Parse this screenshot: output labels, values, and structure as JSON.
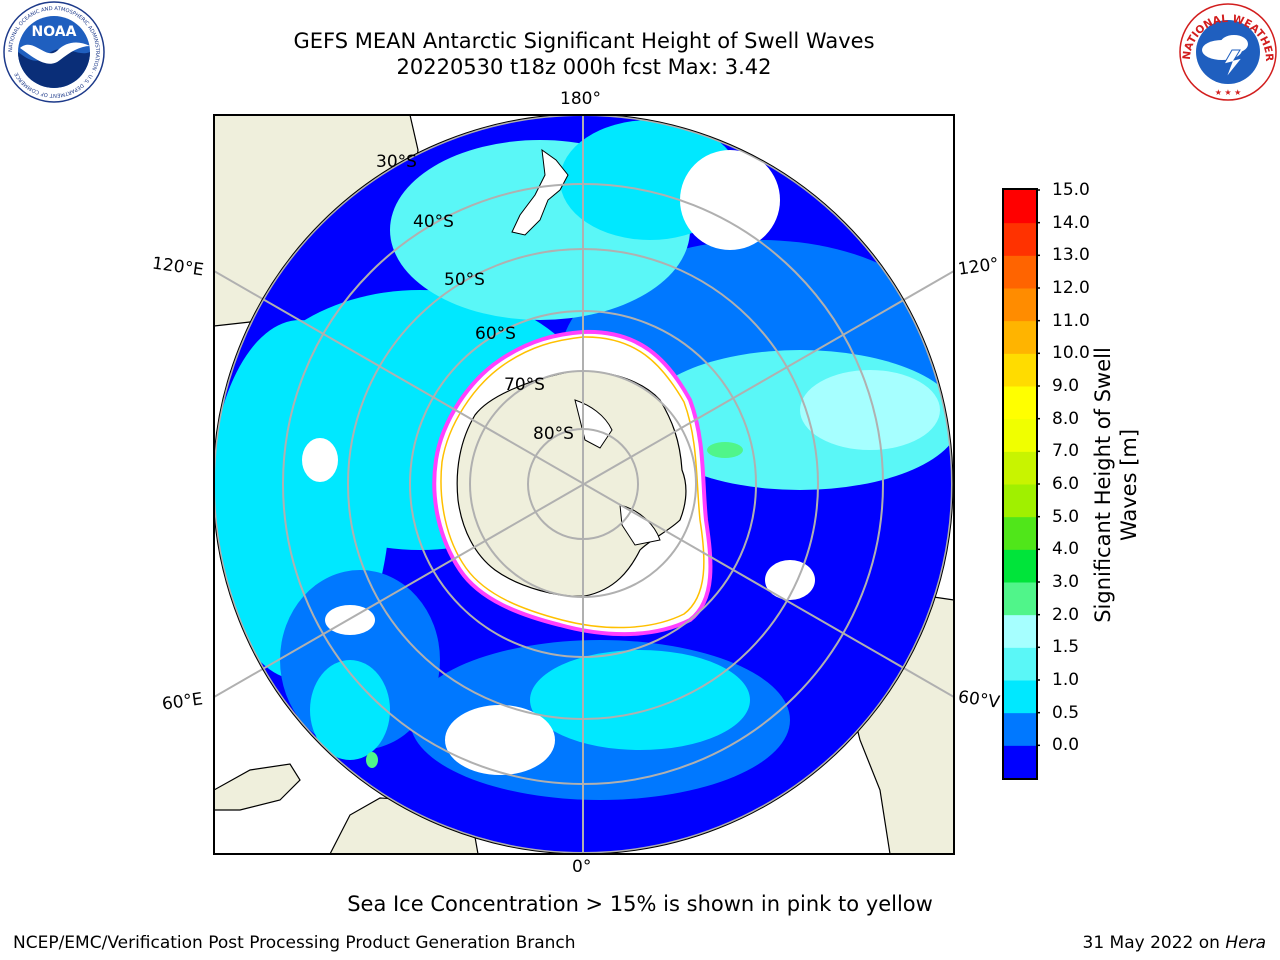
{
  "header": {
    "title_line1": "GEFS MEAN Antarctic Significant Height of Swell Waves",
    "title_line2": "20220530 t18z 000h fcst   Max: 3.42",
    "left_logo_text": "NOAA",
    "left_logo_ring_text": "NATIONAL OCEANIC AND ATMOSPHERIC ADMINISTRATION · U.S. DEPARTMENT OF COMMERCE",
    "right_logo_ring_text": "NATIONAL WEATHER SERVICE"
  },
  "map": {
    "projection": "south-polar-stereographic",
    "lon_labels": {
      "top": "180°",
      "bottom": "0°",
      "left_upper": "120°E",
      "left_lower": "60°E",
      "right_upper": "120°",
      "right_lower": "60°V"
    },
    "lat_labels": [
      "30°S",
      "40°S",
      "50°S",
      "60°S",
      "70°S",
      "80°S"
    ],
    "colors": {
      "land": "#efefdc",
      "ice": "#ffffff",
      "coast": "#000000",
      "grid": "#b0b0b0",
      "ice_edge_pink": "#ff40ff",
      "ice_edge_yellow": "#ffc000"
    }
  },
  "colorbar": {
    "title_line1": "Significant Height of Swell",
    "title_line2": "Waves [m]",
    "ticks": [
      "15.0",
      "14.0",
      "13.0",
      "12.0",
      "11.0",
      "10.0",
      "9.0",
      "8.0",
      "7.0",
      "6.0",
      "5.0",
      "4.0",
      "3.0",
      "2.0",
      "1.5",
      "1.0",
      "0.5",
      "0.0"
    ],
    "colors_bottom_to_top": [
      "#0000ff",
      "#0078ff",
      "#00e8ff",
      "#5af7f7",
      "#a6ffff",
      "#50f58a",
      "#00e43a",
      "#50e61a",
      "#a0f000",
      "#c8f400",
      "#f0ff00",
      "#ffff00",
      "#ffdc00",
      "#ffb400",
      "#ff8c00",
      "#ff6400",
      "#ff3200",
      "#ff0000"
    ]
  },
  "note": "Sea Ice Concentration > 15% is shown in pink to yellow",
  "footer": {
    "left": "NCEP/EMC/Verification Post Processing Product Generation Branch",
    "right_prefix": "31 May 2022 on ",
    "right_italic": "Hera"
  }
}
